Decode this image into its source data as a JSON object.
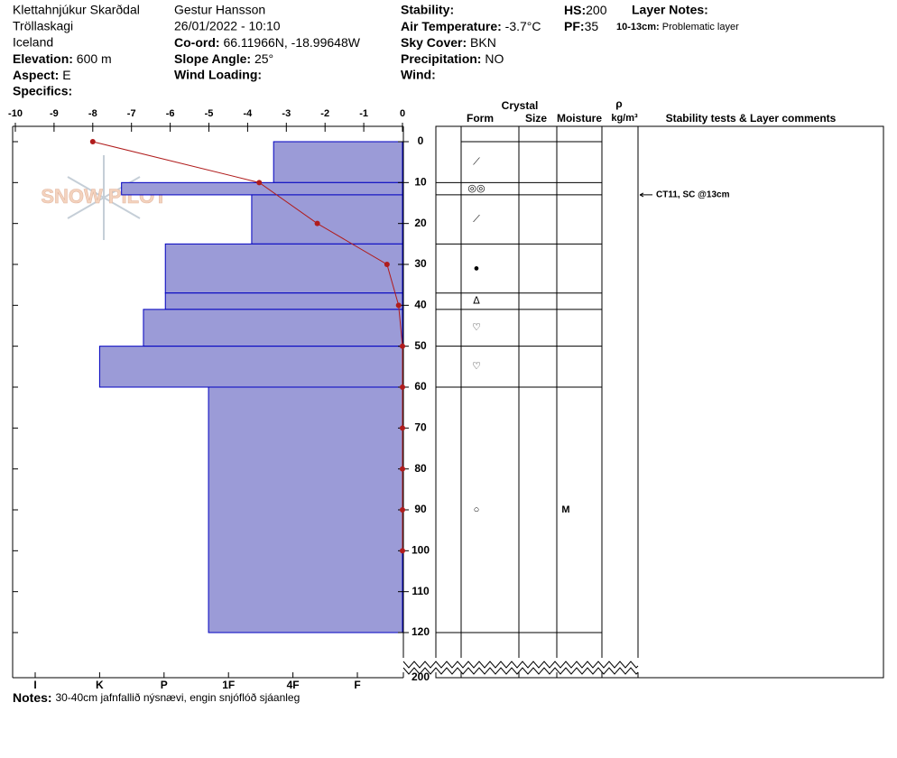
{
  "header": {
    "site": "Klettahnjúkur Skarðdal",
    "range": "Tröllaskagi",
    "country": "Iceland",
    "elevation": {
      "label": "Elevation:",
      "value": "600 m"
    },
    "aspect": {
      "label": "Aspect:",
      "value": "E"
    },
    "specifics": {
      "label": "Specifics:"
    },
    "observer": "Gestur Hansson",
    "datetime": "26/01/2022 - 10:10",
    "coord": {
      "label": "Co-ord:",
      "value": "66.11966N, -18.99648W"
    },
    "slope": {
      "label": "Slope Angle:",
      "value": "25°"
    },
    "wind_loading": {
      "label": "Wind Loading:"
    },
    "stability": {
      "label": "Stability:"
    },
    "air_temp": {
      "label": "Air Temperature:",
      "value": "-3.7°C"
    },
    "sky": {
      "label": "Sky Cover:",
      "value": "BKN"
    },
    "precip": {
      "label": "Precipitation:",
      "value": "NO"
    },
    "wind": {
      "label": "Wind:"
    },
    "hs": {
      "label": "HS:",
      "value": "200"
    },
    "pf": {
      "label": "PF:",
      "value": "35"
    },
    "layer_notes": {
      "label": "Layer Notes:",
      "items": [
        {
          "label": "10-13cm:",
          "value": "Problematic layer"
        }
      ]
    }
  },
  "watermark": "SNOW PILOT",
  "notes": {
    "label": "Notes:",
    "value": "30-40cm jafnfallið nýsnævi, engin snjóflóð sjáanleg"
  },
  "chart_data": {
    "type": "snow-profile",
    "temperature": {
      "xlim": [
        -10,
        0
      ],
      "xticks": [
        -10,
        -9,
        -8,
        -7,
        -6,
        -5,
        -4,
        -3,
        -2,
        -1,
        0
      ],
      "x": [
        -8.0,
        -3.7,
        -2.2,
        -0.4,
        -0.1,
        0,
        0,
        0,
        0,
        0,
        0
      ],
      "y": [
        0,
        10,
        20,
        30,
        40,
        50,
        60,
        70,
        80,
        90,
        100
      ],
      "color": "#b01c1c"
    },
    "depth": {
      "ylim": [
        0,
        120
      ],
      "yticks": [
        0,
        10,
        20,
        30,
        40,
        50,
        60,
        70,
        80,
        90,
        100,
        110,
        120
      ],
      "bottom_tick": 200
    },
    "hardness": {
      "xlim": [
        0.3,
        6.35
      ],
      "xticks": [
        {
          "value": 6,
          "label": "I"
        },
        {
          "value": 5,
          "label": "K"
        },
        {
          "value": 4,
          "label": "P"
        },
        {
          "value": 3,
          "label": "1F"
        },
        {
          "value": 2,
          "label": "4F"
        },
        {
          "value": 1,
          "label": "F"
        }
      ]
    },
    "layers": {
      "color": "#9b9bd7",
      "top": [
        0,
        10,
        13,
        25,
        37,
        41,
        50,
        60
      ],
      "bottom": [
        10,
        13,
        25,
        37,
        41,
        50,
        60,
        120
      ],
      "hardness": [
        2.3,
        4.66,
        2.64,
        3.98,
        3.98,
        4.32,
        5.0,
        3.31
      ],
      "form": [
        "⟋",
        "◎◎",
        "⟋",
        "●",
        "ᐃ",
        "♡",
        "♡",
        "○"
      ],
      "moisture": [
        null,
        null,
        null,
        null,
        null,
        null,
        null,
        "M"
      ]
    },
    "columns": {
      "crystal": "Crystal",
      "form": "Form",
      "size": "Size",
      "moisture": "Moisture",
      "density_symbol": "ρ",
      "density_unit": "kg/m³",
      "comments": "Stability tests & Layer comments"
    },
    "tests": [
      {
        "depth": 13,
        "text": "CT11, SC @13cm"
      }
    ]
  }
}
